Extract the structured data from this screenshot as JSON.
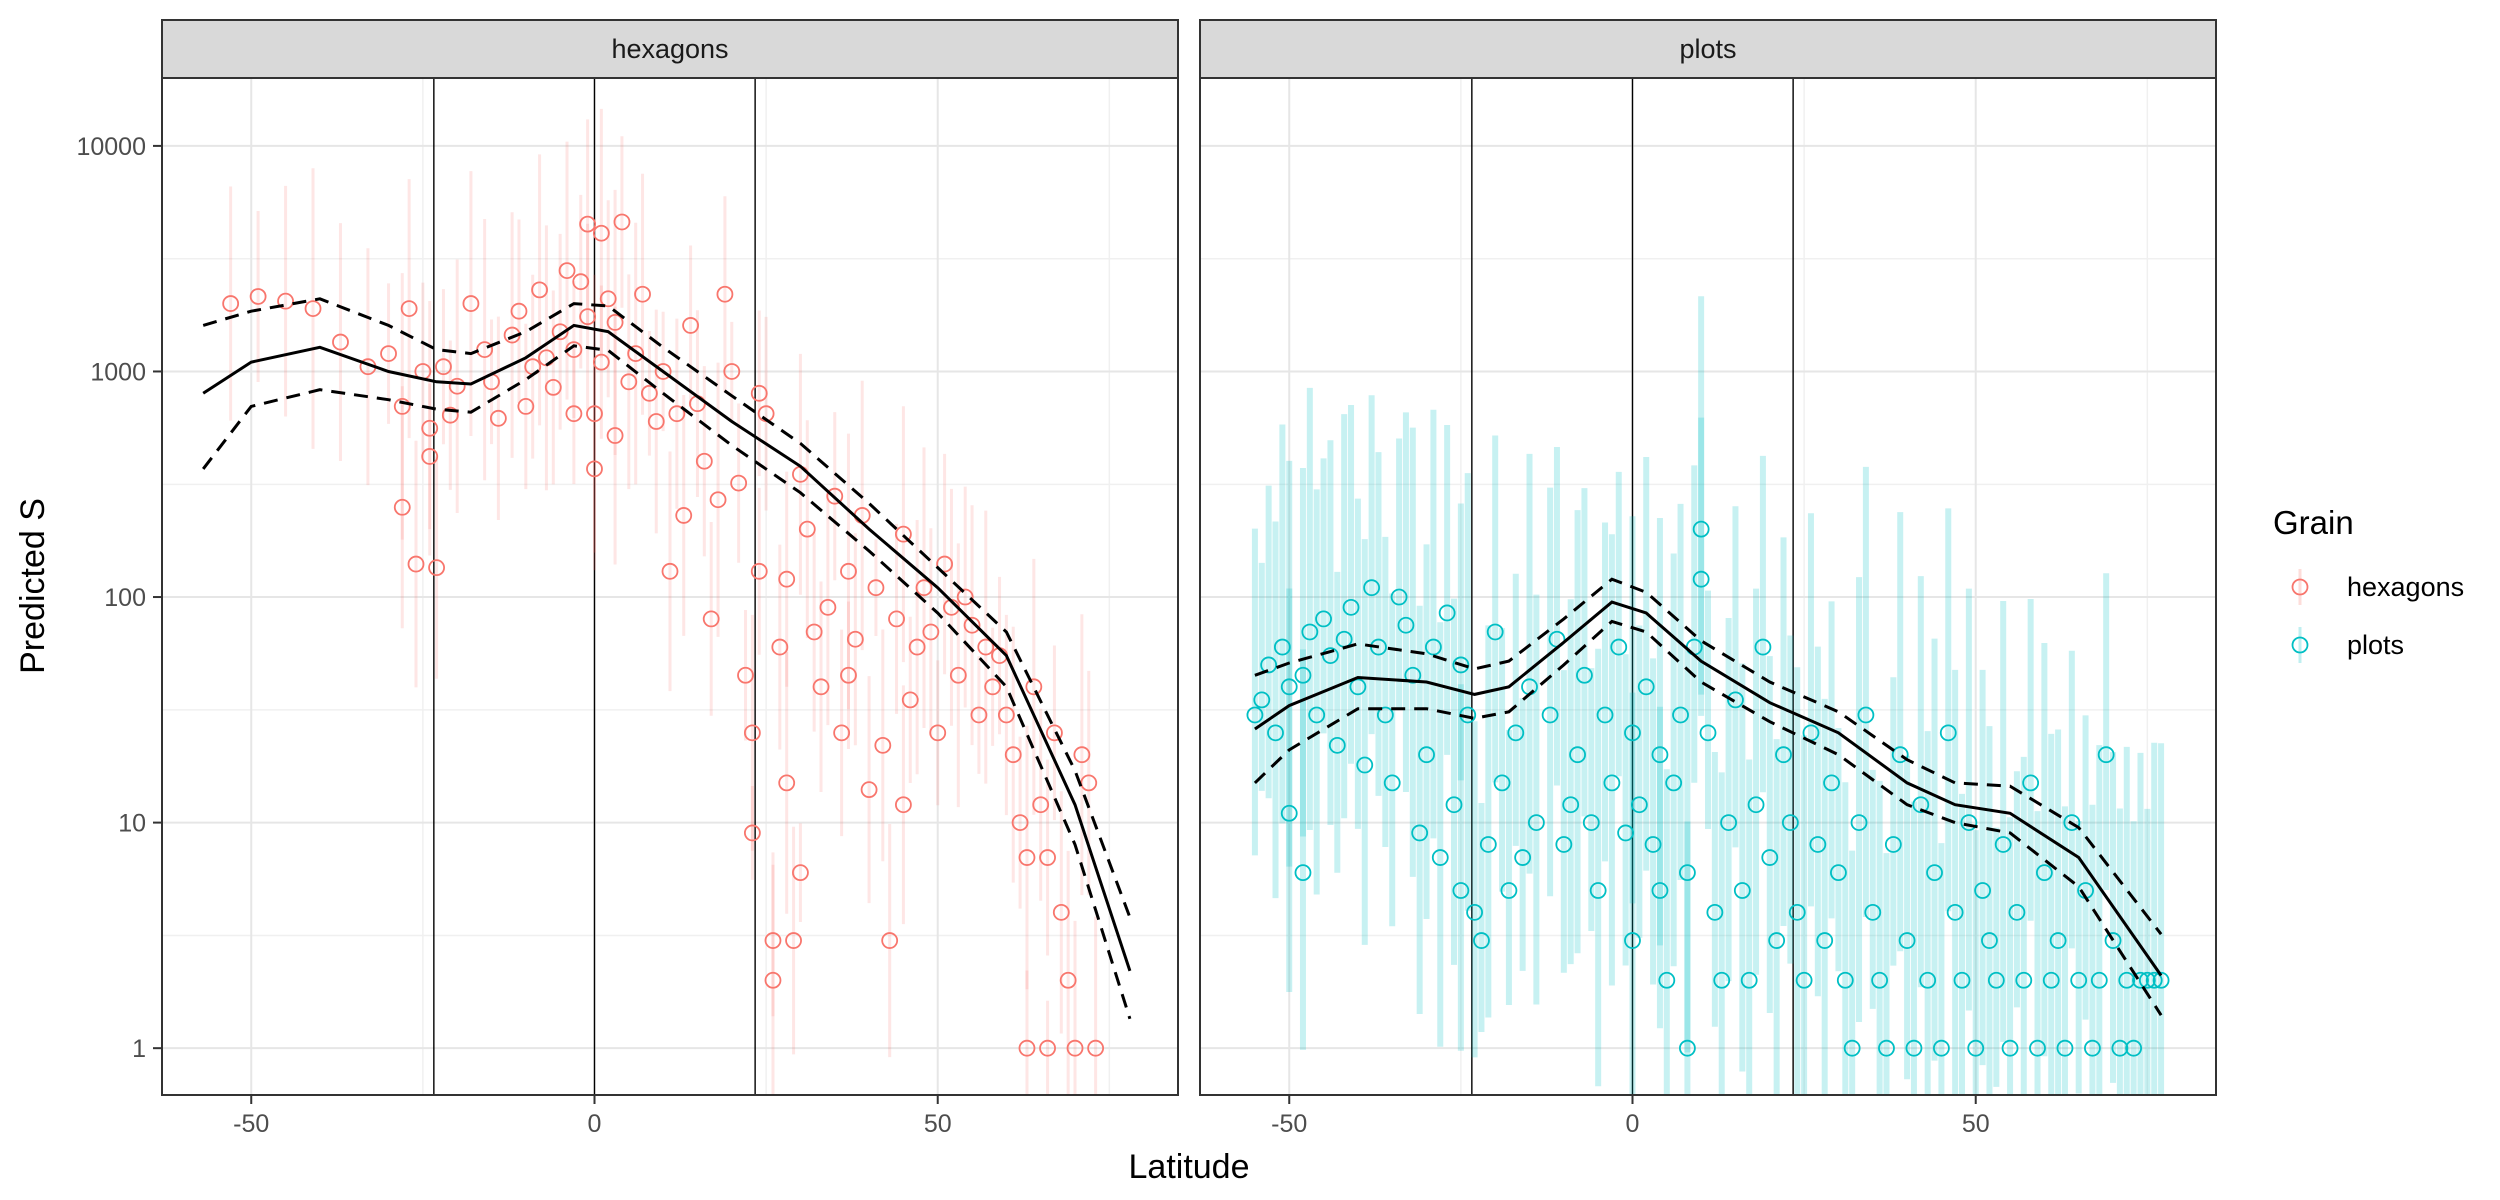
{
  "chart_data": {
    "type": "scatter",
    "facets": [
      "hexagons",
      "plots"
    ],
    "xlabel": "Latitude",
    "ylabel": "Predicted S",
    "xlim": [
      -63,
      85
    ],
    "ylim": [
      0.62,
      20000
    ],
    "y_scale": "log10",
    "x_ticks": [
      -50,
      0,
      50
    ],
    "x_tick_labels": [
      "-50",
      "0",
      "50"
    ],
    "y_ticks": [
      1,
      10,
      100,
      1000,
      10000
    ],
    "y_tick_labels": [
      "1",
      "10",
      "100",
      "1000",
      "10000"
    ],
    "grid": true,
    "reference_lines_x": [
      -23.4,
      0,
      23.4
    ],
    "legend": {
      "title": "Grain",
      "position": "right",
      "entries": [
        {
          "label": "hexagons",
          "color": "#F8766D"
        },
        {
          "label": "plots",
          "color": "#00BFC4"
        }
      ]
    },
    "panels": [
      {
        "facet": "hexagons",
        "color": "#F8766D",
        "fit": {
          "x": [
            -57,
            -50,
            -40,
            -30,
            -23,
            -18,
            -10,
            -3,
            2,
            10,
            20,
            30,
            40,
            50,
            60,
            70,
            78
          ],
          "mean": [
            800,
            1100,
            1280,
            1000,
            900,
            880,
            1150,
            1600,
            1500,
            1000,
            600,
            380,
            200,
            110,
            55,
            12,
            2.2
          ],
          "lower": [
            370,
            700,
            830,
            750,
            680,
            660,
            920,
            1300,
            1240,
            800,
            470,
            290,
            160,
            85,
            40,
            8,
            1.35
          ],
          "upper": [
            1600,
            1850,
            2100,
            1600,
            1250,
            1200,
            1500,
            2000,
            1950,
            1280,
            780,
            480,
            260,
            135,
            70,
            17,
            3.8
          ]
        },
        "points": [
          [
            -53,
            2000
          ],
          [
            -49,
            2150
          ],
          [
            -45,
            2050
          ],
          [
            -41,
            1900
          ],
          [
            -37,
            1350
          ],
          [
            -33,
            1050
          ],
          [
            -30,
            1200
          ],
          [
            -28,
            700
          ],
          [
            -28,
            250
          ],
          [
            -27,
            1900
          ],
          [
            -26,
            140
          ],
          [
            -25,
            1000
          ],
          [
            -24,
            560
          ],
          [
            -24,
            420
          ],
          [
            -23,
            135
          ],
          [
            -22,
            1050
          ],
          [
            -21,
            640
          ],
          [
            -20,
            860
          ],
          [
            -18,
            2000
          ],
          [
            -16,
            1250
          ],
          [
            -15,
            900
          ],
          [
            -14,
            620
          ],
          [
            -12,
            1450
          ],
          [
            -11,
            1850
          ],
          [
            -10,
            700
          ],
          [
            -9,
            1050
          ],
          [
            -8,
            2300
          ],
          [
            -7,
            1150
          ],
          [
            -6,
            850
          ],
          [
            -5,
            1500
          ],
          [
            -4,
            2800
          ],
          [
            -3,
            650
          ],
          [
            -3,
            1250
          ],
          [
            -2,
            2500
          ],
          [
            -1,
            1750
          ],
          [
            -1,
            4500
          ],
          [
            0,
            650
          ],
          [
            0,
            370
          ],
          [
            1,
            4100
          ],
          [
            1,
            1100
          ],
          [
            2,
            2100
          ],
          [
            3,
            1650
          ],
          [
            3,
            520
          ],
          [
            4,
            4600
          ],
          [
            5,
            900
          ],
          [
            6,
            1200
          ],
          [
            7,
            2200
          ],
          [
            8,
            800
          ],
          [
            9,
            600
          ],
          [
            10,
            1000
          ],
          [
            11,
            130
          ],
          [
            12,
            650
          ],
          [
            13,
            230
          ],
          [
            14,
            1600
          ],
          [
            15,
            720
          ],
          [
            16,
            400
          ],
          [
            17,
            80
          ],
          [
            18,
            270
          ],
          [
            19,
            2200
          ],
          [
            20,
            1000
          ],
          [
            21,
            320
          ],
          [
            22,
            45
          ],
          [
            23,
            25
          ],
          [
            23,
            9
          ],
          [
            24,
            130
          ],
          [
            24,
            800
          ],
          [
            25,
            650
          ],
          [
            26,
            3
          ],
          [
            26,
            2
          ],
          [
            27,
            60
          ],
          [
            28,
            120
          ],
          [
            28,
            15
          ],
          [
            29,
            3
          ],
          [
            30,
            350
          ],
          [
            30,
            6
          ],
          [
            31,
            200
          ],
          [
            32,
            70
          ],
          [
            33,
            40
          ],
          [
            34,
            90
          ],
          [
            35,
            280
          ],
          [
            36,
            25
          ],
          [
            37,
            130
          ],
          [
            37,
            45
          ],
          [
            38,
            65
          ],
          [
            39,
            230
          ],
          [
            40,
            14
          ],
          [
            41,
            110
          ],
          [
            42,
            22
          ],
          [
            43,
            3
          ],
          [
            44,
            80
          ],
          [
            45,
            190
          ],
          [
            45,
            12
          ],
          [
            46,
            35
          ],
          [
            47,
            60
          ],
          [
            48,
            110
          ],
          [
            49,
            70
          ],
          [
            50,
            25
          ],
          [
            51,
            140
          ],
          [
            52,
            90
          ],
          [
            53,
            45
          ],
          [
            54,
            100
          ],
          [
            55,
            75
          ],
          [
            56,
            30
          ],
          [
            57,
            60
          ],
          [
            58,
            40
          ],
          [
            59,
            55
          ],
          [
            60,
            30
          ],
          [
            61,
            20
          ],
          [
            62,
            10
          ],
          [
            63,
            7
          ],
          [
            63,
            1
          ],
          [
            64,
            40
          ],
          [
            65,
            12
          ],
          [
            66,
            7
          ],
          [
            66,
            1
          ],
          [
            67,
            25
          ],
          [
            68,
            4
          ],
          [
            69,
            2
          ],
          [
            70,
            1
          ],
          [
            71,
            20
          ],
          [
            72,
            15
          ],
          [
            73,
            1
          ]
        ]
      },
      {
        "facet": "plots",
        "color": "#00BFC4",
        "fit": {
          "x": [
            -55,
            -50,
            -40,
            -30,
            -23,
            -18,
            -10,
            -3,
            2,
            10,
            20,
            30,
            40,
            47,
            55,
            65,
            77
          ],
          "mean": [
            26,
            33,
            44,
            42,
            37,
            40,
            63,
            95,
            85,
            52,
            34,
            25,
            15,
            12,
            11,
            7,
            2.1
          ],
          "lower": [
            15,
            21,
            32,
            32,
            29,
            31,
            50,
            78,
            70,
            42,
            28,
            20,
            12,
            10,
            9,
            5.2,
            1.4
          ],
          "upper": [
            45,
            51,
            62,
            56,
            48,
            52,
            80,
            120,
            105,
            64,
            42,
            31,
            19,
            15,
            14.5,
            9.5,
            3.2
          ]
        },
        "points": [
          [
            -55,
            30
          ],
          [
            -54,
            35
          ],
          [
            -53,
            50
          ],
          [
            -52,
            25
          ],
          [
            -51,
            60
          ],
          [
            -50,
            40
          ],
          [
            -50,
            11
          ],
          [
            -48,
            45
          ],
          [
            -48,
            6
          ],
          [
            -47,
            70
          ],
          [
            -46,
            30
          ],
          [
            -45,
            80
          ],
          [
            -44,
            55
          ],
          [
            -43,
            22
          ],
          [
            -42,
            65
          ],
          [
            -41,
            90
          ],
          [
            -40,
            40
          ],
          [
            -39,
            18
          ],
          [
            -38,
            110
          ],
          [
            -37,
            60
          ],
          [
            -36,
            30
          ],
          [
            -35,
            15
          ],
          [
            -34,
            100
          ],
          [
            -33,
            75
          ],
          [
            -32,
            45
          ],
          [
            -31,
            9
          ],
          [
            -30,
            20
          ],
          [
            -29,
            60
          ],
          [
            -28,
            7
          ],
          [
            -27,
            85
          ],
          [
            -26,
            12
          ],
          [
            -25,
            5
          ],
          [
            -25,
            50
          ],
          [
            -24,
            30
          ],
          [
            -23,
            4
          ],
          [
            -22,
            3
          ],
          [
            -21,
            8
          ],
          [
            -20,
            70
          ],
          [
            -19,
            15
          ],
          [
            -18,
            5
          ],
          [
            -17,
            25
          ],
          [
            -16,
            7
          ],
          [
            -15,
            40
          ],
          [
            -14,
            10
          ],
          [
            -12,
            30
          ],
          [
            -11,
            65
          ],
          [
            -10,
            8
          ],
          [
            -9,
            12
          ],
          [
            -8,
            20
          ],
          [
            -7,
            45
          ],
          [
            -6,
            10
          ],
          [
            -5,
            5
          ],
          [
            -4,
            30
          ],
          [
            -3,
            15
          ],
          [
            -2,
            60
          ],
          [
            -1,
            9
          ],
          [
            0,
            25
          ],
          [
            0,
            3
          ],
          [
            1,
            12
          ],
          [
            2,
            40
          ],
          [
            3,
            8
          ],
          [
            4,
            20
          ],
          [
            4,
            5
          ],
          [
            5,
            2
          ],
          [
            6,
            15
          ],
          [
            7,
            30
          ],
          [
            8,
            1
          ],
          [
            8,
            6
          ],
          [
            9,
            60
          ],
          [
            10,
            120
          ],
          [
            10,
            200
          ],
          [
            11,
            25
          ],
          [
            12,
            4
          ],
          [
            13,
            2
          ],
          [
            14,
            10
          ],
          [
            15,
            35
          ],
          [
            16,
            5
          ],
          [
            17,
            2
          ],
          [
            18,
            12
          ],
          [
            19,
            60
          ],
          [
            20,
            7
          ],
          [
            21,
            3
          ],
          [
            22,
            20
          ],
          [
            23,
            10
          ],
          [
            24,
            4
          ],
          [
            25,
            2
          ],
          [
            26,
            25
          ],
          [
            27,
            8
          ],
          [
            28,
            3
          ],
          [
            29,
            15
          ],
          [
            30,
            6
          ],
          [
            31,
            2
          ],
          [
            32,
            1
          ],
          [
            33,
            10
          ],
          [
            34,
            30
          ],
          [
            35,
            4
          ],
          [
            36,
            2
          ],
          [
            37,
            1
          ],
          [
            38,
            8
          ],
          [
            39,
            20
          ],
          [
            40,
            3
          ],
          [
            41,
            1
          ],
          [
            42,
            12
          ],
          [
            43,
            2
          ],
          [
            44,
            6
          ],
          [
            45,
            1
          ],
          [
            46,
            25
          ],
          [
            47,
            4
          ],
          [
            48,
            2
          ],
          [
            49,
            10
          ],
          [
            50,
            1
          ],
          [
            51,
            5
          ],
          [
            52,
            3
          ],
          [
            53,
            2
          ],
          [
            54,
            8
          ],
          [
            55,
            1
          ],
          [
            56,
            4
          ],
          [
            57,
            2
          ],
          [
            58,
            15
          ],
          [
            59,
            1
          ],
          [
            60,
            6
          ],
          [
            61,
            2
          ],
          [
            62,
            3
          ],
          [
            63,
            1
          ],
          [
            64,
            10
          ],
          [
            65,
            2
          ],
          [
            66,
            5
          ],
          [
            67,
            1
          ],
          [
            68,
            2
          ],
          [
            69,
            20
          ],
          [
            70,
            3
          ],
          [
            71,
            1
          ],
          [
            72,
            2
          ],
          [
            73,
            1
          ],
          [
            74,
            2
          ],
          [
            75,
            2
          ],
          [
            76,
            2
          ],
          [
            77,
            2
          ]
        ]
      }
    ]
  }
}
